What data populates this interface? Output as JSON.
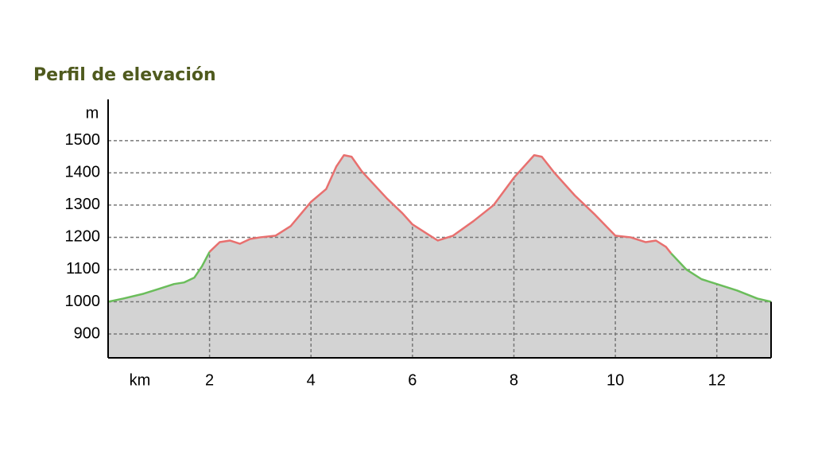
{
  "chart_data": {
    "type": "area-line",
    "title": "Perfil de elevación",
    "y_label": "m",
    "x_label": "km",
    "xlim": [
      0,
      13.07
    ],
    "ylim": [
      826,
      1628
    ],
    "xticks": [
      2,
      4,
      6,
      8,
      10,
      12
    ],
    "yticks": [
      900,
      1000,
      1100,
      1200,
      1300,
      1400,
      1500
    ],
    "grid": true,
    "fill_color": "#d3d3d3",
    "series": [
      {
        "color": "#6bbd5b",
        "x": [
          0,
          0.3,
          0.7,
          1.0,
          1.3,
          1.5,
          1.7,
          1.85,
          2.0
        ],
        "values": [
          1000,
          1010,
          1025,
          1040,
          1055,
          1060,
          1075,
          1110,
          1155
        ]
      },
      {
        "color": "#e8706f",
        "x": [
          2.0,
          2.2,
          2.4,
          2.6,
          2.8,
          3.0,
          3.3,
          3.6,
          4.0,
          4.3,
          4.5,
          4.65,
          4.8,
          5.0,
          5.5,
          5.8,
          6.0,
          6.3,
          6.5,
          6.8,
          7.2,
          7.6,
          8.0,
          8.2,
          8.4,
          8.55,
          8.8,
          9.2,
          9.6,
          10.0,
          10.3,
          10.6,
          10.8,
          11.0,
          11.1
        ],
        "values": [
          1155,
          1185,
          1190,
          1180,
          1195,
          1200,
          1205,
          1235,
          1310,
          1350,
          1420,
          1455,
          1450,
          1405,
          1320,
          1275,
          1240,
          1210,
          1190,
          1205,
          1250,
          1300,
          1385,
          1420,
          1455,
          1450,
          1400,
          1330,
          1270,
          1205,
          1200,
          1185,
          1190,
          1170,
          1150
        ]
      },
      {
        "color": "#6bbd5b",
        "x": [
          11.1,
          11.4,
          11.7,
          12.0,
          12.4,
          12.8,
          13.07
        ],
        "values": [
          1150,
          1100,
          1070,
          1055,
          1035,
          1010,
          1000
        ]
      }
    ]
  }
}
